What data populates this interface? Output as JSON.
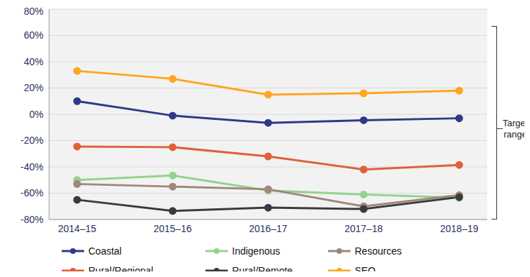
{
  "chart_data": {
    "type": "line",
    "categories": [
      "2014–15",
      "2015–16",
      "2016–17",
      "2017–18",
      "2018–19"
    ],
    "series": [
      {
        "name": "Coastal",
        "color": "#2e3a87",
        "values": [
          10,
          -1,
          -6.5,
          -4.5,
          -3
        ]
      },
      {
        "name": "Indigenous",
        "color": "#92d38c",
        "values": [
          -50,
          -46.5,
          -58,
          -61,
          -63.5
        ]
      },
      {
        "name": "Resources",
        "color": "#a08779",
        "values": [
          -53,
          -55,
          -57,
          -70,
          -61.5
        ]
      },
      {
        "name": "Rural/Regional",
        "color": "#e0603a",
        "values": [
          -24.5,
          -25,
          -32,
          -42,
          -38.5
        ]
      },
      {
        "name": "Rural/Remote",
        "color": "#3b3b3b",
        "values": [
          -65,
          -73.5,
          -71,
          -72,
          -63
        ]
      },
      {
        "name": "SEQ",
        "color": "#ffa51f",
        "values": [
          33,
          27,
          15,
          16,
          18
        ]
      }
    ],
    "ylim": [
      -80,
      80
    ],
    "yticks": [
      {
        "value": -80,
        "label": "-80%"
      },
      {
        "value": -60,
        "label": "-60%"
      },
      {
        "value": -40,
        "label": "-40%"
      },
      {
        "value": -20,
        "label": "-20%"
      },
      {
        "value": 0,
        "label": "0%"
      },
      {
        "value": 20,
        "label": "20%"
      },
      {
        "value": 40,
        "label": "40%"
      },
      {
        "value": 60,
        "label": "60%"
      },
      {
        "value": 80,
        "label": "80%"
      }
    ],
    "grid": true,
    "legend": "bottom",
    "annotations": [
      "Target range"
    ]
  }
}
